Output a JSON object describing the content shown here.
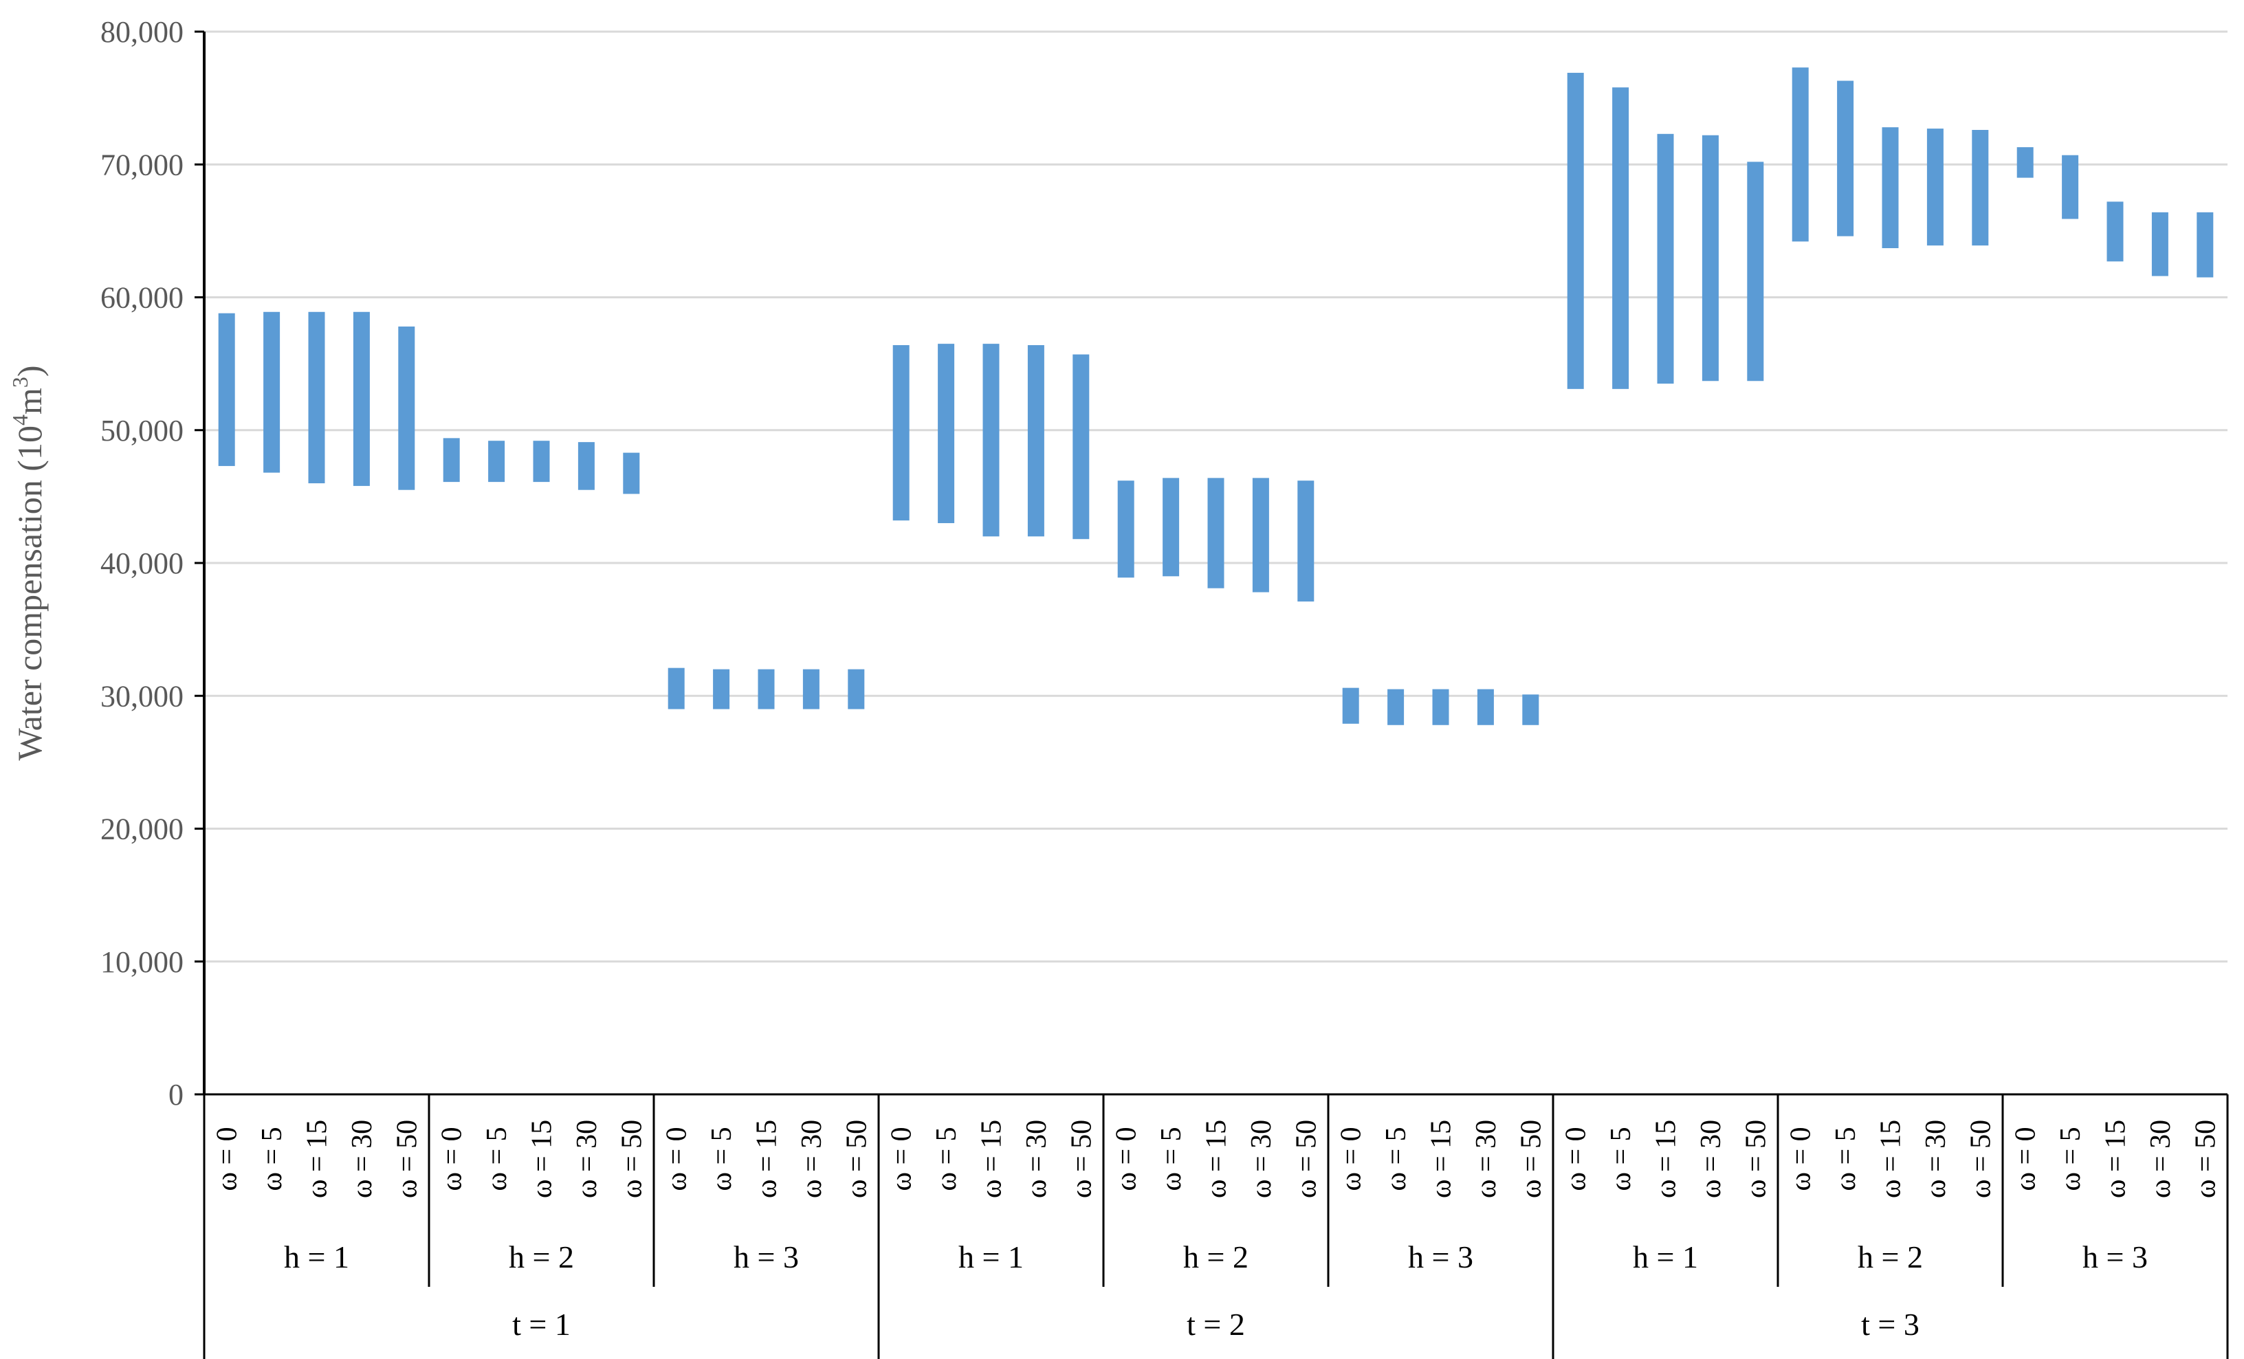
{
  "chart_data": {
    "type": "bar",
    "subtype": "floating-range",
    "title": "",
    "xlabel": "",
    "ylabel": "Water compensation (10",
    "ylabel_sup1": "4",
    "ylabel_mid": "m",
    "ylabel_sup2": "3",
    "ylabel_end": ")",
    "ylim": [
      0,
      80000
    ],
    "yticks": [
      "0",
      "10,000",
      "20,000",
      "30,000",
      "40,000",
      "50,000",
      "60,000",
      "70,000",
      "80,000"
    ],
    "grid": true,
    "legend": "none",
    "bar_color": "#5B9BD5",
    "omega_labels": [
      "ω = 0",
      "ω = 5",
      "ω = 15",
      "ω = 30",
      "ω = 50"
    ],
    "h_labels": [
      "h = 1",
      "h = 2",
      "h = 3"
    ],
    "t_labels": [
      "t = 1",
      "t = 2",
      "t = 3"
    ],
    "ranges": [
      [
        [
          47300,
          58800
        ],
        [
          46800,
          58900
        ],
        [
          46000,
          58900
        ],
        [
          45800,
          58900
        ],
        [
          45500,
          57800
        ]
      ],
      [
        [
          46100,
          49400
        ],
        [
          46100,
          49200
        ],
        [
          46100,
          49200
        ],
        [
          45500,
          49100
        ],
        [
          45200,
          48300
        ]
      ],
      [
        [
          29000,
          32100
        ],
        [
          29000,
          32000
        ],
        [
          29000,
          32000
        ],
        [
          29000,
          32000
        ],
        [
          29000,
          32000
        ]
      ],
      [
        [
          43200,
          56400
        ],
        [
          43000,
          56500
        ],
        [
          42000,
          56500
        ],
        [
          42000,
          56400
        ],
        [
          41800,
          55700
        ]
      ],
      [
        [
          38900,
          46200
        ],
        [
          39000,
          46400
        ],
        [
          38100,
          46400
        ],
        [
          37800,
          46400
        ],
        [
          37100,
          46200
        ]
      ],
      [
        [
          27900,
          30600
        ],
        [
          27800,
          30500
        ],
        [
          27800,
          30500
        ],
        [
          27800,
          30500
        ],
        [
          27800,
          30100
        ]
      ],
      [
        [
          53100,
          76900
        ],
        [
          53100,
          75800
        ],
        [
          53500,
          72300
        ],
        [
          53700,
          72200
        ],
        [
          53700,
          70200
        ]
      ],
      [
        [
          64200,
          77300
        ],
        [
          64600,
          76300
        ],
        [
          63700,
          72800
        ],
        [
          63900,
          72700
        ],
        [
          63900,
          72600
        ]
      ],
      [
        [
          69000,
          71300
        ],
        [
          65900,
          70700
        ],
        [
          62700,
          67200
        ],
        [
          61600,
          66400
        ],
        [
          61500,
          66400
        ]
      ]
    ]
  }
}
